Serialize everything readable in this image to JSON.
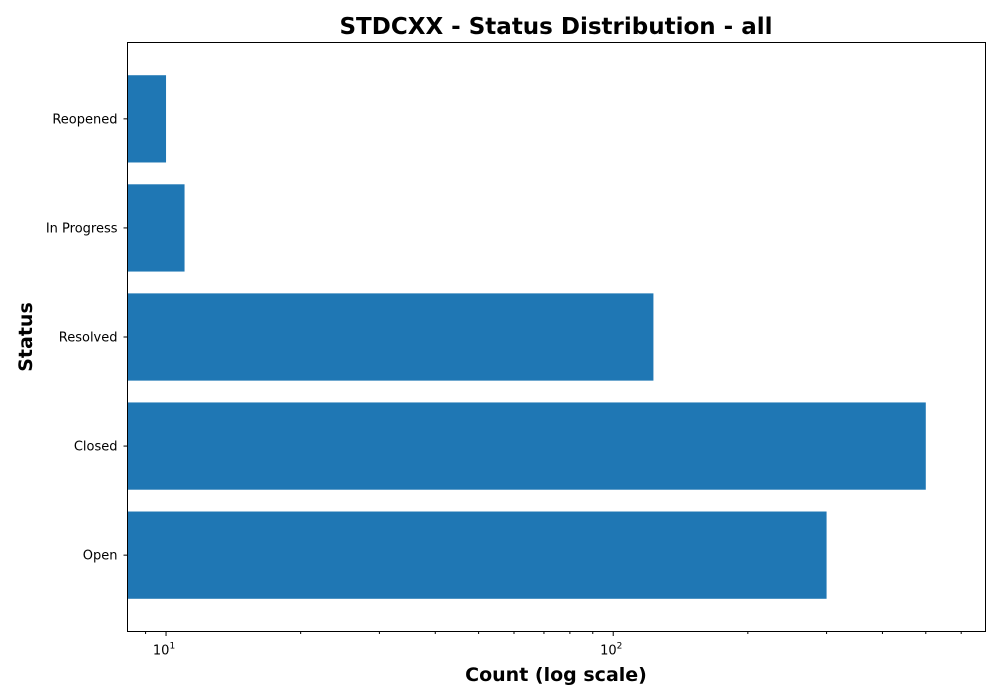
{
  "chart_data": {
    "type": "bar",
    "orientation": "horizontal",
    "title": "STDCXX - Status Distribution - all",
    "xlabel": "Count (log scale)",
    "ylabel": "Status",
    "x_scale": "log",
    "xlim": [
      8.2,
      680
    ],
    "categories": [
      "Open",
      "Closed",
      "Resolved",
      "In Progress",
      "Reopened"
    ],
    "values": [
      300,
      500,
      123,
      11,
      10
    ],
    "x_major_ticks": [
      {
        "value": 10,
        "base": "10",
        "exp": "1"
      },
      {
        "value": 100,
        "base": "10",
        "exp": "2"
      }
    ],
    "bar_color": "#1f77b4",
    "grid": false,
    "legend": "none"
  }
}
